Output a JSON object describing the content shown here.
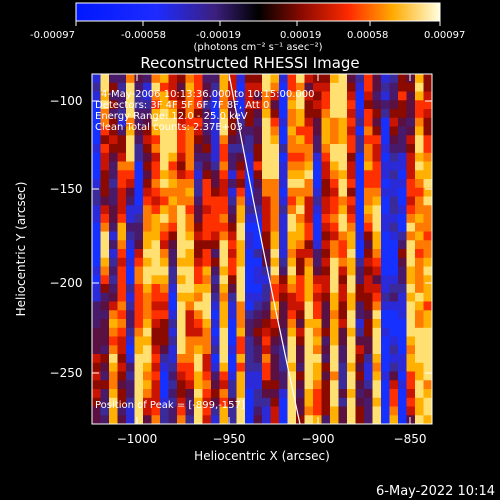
{
  "colorbar": {
    "tick_labels": [
      "-0.00097",
      "-0.00058",
      "-0.00019",
      "0.00019",
      "0.00058",
      "0.00097"
    ],
    "units_label": "(photons cm⁻² s⁻¹ asec⁻²)",
    "min": -0.00097,
    "max": 0.00097
  },
  "plot": {
    "title": "Reconstructed RHESSI Image",
    "xlabel": "Heliocentric X (arcsec)",
    "ylabel": "Heliocentric Y (arcsec)",
    "x_ticks": [
      "−1000",
      "−950",
      "−900",
      "−850"
    ],
    "y_ticks": [
      "−100",
      "−150",
      "−200",
      "−250"
    ],
    "info_lines": [
      "4-May-2006 10:13:36.000 to 10:15:00.000",
      "Detectors: 3F 4F 5F 6F 7F 8F, Att 0",
      "Energy Range: 12.0 - 25.0 keV",
      "Clean     Total counts: 2.37E+03"
    ],
    "peak_label": "Position of Peak = [-899,-157]",
    "footer_date": "6-May-2022 10:14"
  }
}
